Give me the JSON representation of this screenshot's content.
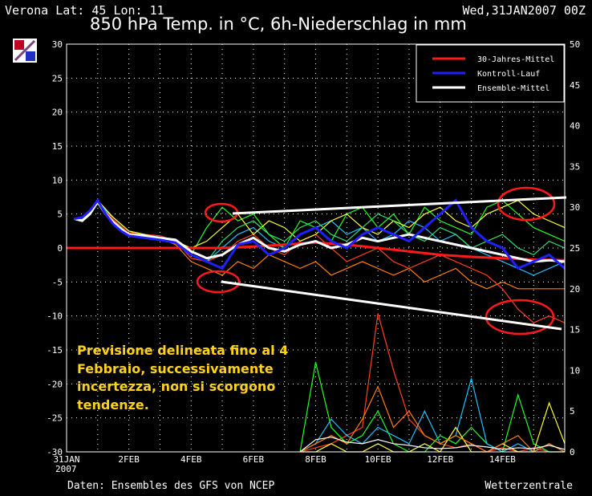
{
  "header": {
    "station": "Verona   Lat: 45 Lon: 11",
    "run": "Wed,31JAN2007 00Z",
    "title": "850 hPa Temp. in °C, 6h-Niederschlag in mm"
  },
  "footer": {
    "source": "Daten: Ensembles des GFS von NCEP",
    "brand": "Wetterzentrale"
  },
  "annotation": {
    "lines": [
      "Previsione delineata fino al 4",
      "Febbraio, successivamente",
      "incertezza, non si scorgono",
      "tendenze."
    ]
  },
  "colors": {
    "climate": "#ff1a1a",
    "control": "#2020ff",
    "mean": "#ffffff",
    "annotation": "#ffd21a",
    "members": [
      "#20ff20",
      "#ff8000",
      "#ff4020",
      "#20c0ff",
      "#ffff30",
      "#30e070",
      "#ff6060",
      "#e0a000"
    ]
  },
  "chart_data": {
    "type": "line",
    "ylim": [
      -30,
      30
    ],
    "y2lim": [
      0,
      50
    ],
    "yticks": [
      "30",
      "25",
      "20",
      "15",
      "10",
      "5",
      "0",
      "-5",
      "-10",
      "-15",
      "-20",
      "-25",
      "-30"
    ],
    "y2ticks": [
      "50",
      "45",
      "40",
      "35",
      "30",
      "25",
      "20",
      "15",
      "10",
      "5",
      "0"
    ],
    "xticks": [
      "31JAN",
      "2FEB",
      "4FEB",
      "6FEB",
      "8FEB",
      "10FEB",
      "12FEB",
      "14FEB"
    ],
    "xtick_sub": "2007",
    "xlim": [
      0,
      16
    ],
    "grid": true,
    "legend": {
      "position": "top-right",
      "entries": [
        "30-Jahres-Mittel",
        "Kontroll-Lauf",
        "Ensemble-Mittel"
      ]
    },
    "series": [
      {
        "name": "30-Jahres-Mittel",
        "color": "#ff1a1a",
        "x": [
          0,
          1,
          2,
          3,
          4,
          5,
          6,
          7,
          8,
          9,
          10,
          11,
          12,
          13,
          14,
          15,
          16
        ],
        "y": [
          0,
          0,
          0,
          0,
          0,
          0,
          0.2,
          0.5,
          0.8,
          0.5,
          0,
          -0.5,
          -1,
          -1.3,
          -1.5,
          -1.7,
          -1.8
        ]
      },
      {
        "name": "Kontroll-Lauf",
        "color": "#2020ff",
        "x": [
          0.25,
          0.5,
          0.75,
          1,
          1.25,
          1.5,
          1.75,
          2,
          2.5,
          3,
          3.5,
          4,
          4.5,
          5,
          5.5,
          6,
          6.5,
          7,
          7.5,
          8,
          8.5,
          9,
          9.5,
          10,
          10.5,
          11,
          11.5,
          12,
          12.5,
          13,
          13.5,
          14,
          14.5,
          15,
          15.5,
          16
        ],
        "y": [
          4.3,
          4.5,
          5.5,
          7,
          5,
          3.5,
          2.5,
          1.8,
          1.5,
          1.2,
          0.8,
          -1,
          -2,
          -3,
          0.5,
          1,
          -1,
          0,
          2,
          3,
          1,
          0,
          2,
          3,
          2,
          1,
          3,
          5,
          7,
          3,
          1,
          0,
          -3,
          -2,
          -1,
          -3
        ]
      },
      {
        "name": "Ensemble-Mittel",
        "color": "#ffffff",
        "x": [
          0.25,
          0.5,
          0.75,
          1,
          1.25,
          1.5,
          1.75,
          2,
          2.5,
          3,
          3.5,
          4,
          4.5,
          5,
          5.5,
          6,
          6.5,
          7,
          7.5,
          8,
          8.5,
          9,
          9.5,
          10,
          10.5,
          11,
          11.5,
          12,
          12.5,
          13,
          13.5,
          14,
          14.5,
          15,
          15.5,
          16
        ],
        "y": [
          4.3,
          4,
          5,
          6.8,
          5,
          3.8,
          2.8,
          2,
          1.8,
          1.5,
          1.2,
          -0.5,
          -1.5,
          -1,
          0.5,
          1.5,
          0,
          -0.5,
          0.5,
          1,
          0,
          0.5,
          1.5,
          1,
          1.5,
          2,
          1.5,
          1,
          0.5,
          0,
          -0.5,
          -1,
          -1.5,
          -2,
          -1.8,
          -2
        ]
      },
      {
        "name": "",
        "color": "#20ff20",
        "x": [
          0.25,
          0.5,
          1,
          1.5,
          2,
          2.5,
          3,
          3.5,
          4,
          4.5,
          5,
          5.5,
          6,
          6.5,
          7,
          7.5,
          8,
          8.5,
          9,
          9.5,
          10,
          10.5,
          11,
          11.5,
          12,
          12.5,
          13,
          13.5,
          14,
          14.5,
          15,
          15.5,
          16
        ],
        "y": [
          4.3,
          4,
          7,
          4,
          2,
          2,
          1.5,
          1,
          -1,
          3,
          6,
          4,
          5,
          2,
          0,
          4,
          3,
          1,
          5,
          6,
          3,
          5,
          2,
          6,
          4,
          3,
          2,
          6,
          7,
          5,
          3,
          2,
          1
        ]
      },
      {
        "name": "",
        "color": "#ff8000",
        "x": [
          0.25,
          0.5,
          1,
          1.5,
          2,
          2.5,
          3,
          3.5,
          4,
          4.5,
          5,
          5.5,
          6,
          6.5,
          7,
          7.5,
          8,
          8.5,
          9,
          9.5,
          10,
          10.5,
          11,
          11.5,
          12,
          12.5,
          13,
          13.5,
          14,
          14.5,
          15,
          15.5,
          16
        ],
        "y": [
          4.3,
          4,
          6.5,
          4.5,
          2.5,
          1.5,
          1.5,
          0.5,
          -2,
          -3,
          -4,
          -2,
          -3,
          -1,
          -2,
          -3,
          -2,
          -4,
          -3,
          -2,
          -3,
          -4,
          -3,
          -5,
          -4,
          -3,
          -5,
          -6,
          -5,
          -6,
          -6,
          -6,
          -6
        ]
      },
      {
        "name": "",
        "color": "#ff4020",
        "x": [
          0.25,
          0.5,
          1,
          1.5,
          2,
          2.5,
          3,
          3.5,
          4,
          4.5,
          5,
          5.5,
          6,
          6.5,
          7,
          7.5,
          8,
          8.5,
          9,
          9.5,
          10,
          10.5,
          11,
          11.5,
          12,
          12.5,
          13,
          13.5,
          14,
          14.5,
          15,
          15.5,
          16
        ],
        "y": [
          4.3,
          4,
          6.8,
          4.2,
          2.2,
          2,
          1.8,
          1,
          -1.5,
          -2,
          -1,
          1,
          2,
          0,
          -1,
          1,
          2,
          0,
          -2,
          -1,
          0,
          -2,
          -3,
          -2,
          -1,
          -2,
          -3,
          -4,
          -6,
          -9,
          -11,
          -10,
          -11
        ]
      },
      {
        "name": "",
        "color": "#20c0ff",
        "x": [
          0.25,
          0.5,
          1,
          1.5,
          2,
          2.5,
          3,
          3.5,
          4,
          4.5,
          5,
          5.5,
          6,
          6.5,
          7,
          7.5,
          8,
          8.5,
          9,
          9.5,
          10,
          10.5,
          11,
          11.5,
          12,
          12.5,
          13,
          13.5,
          14,
          14.5,
          15,
          15.5,
          16
        ],
        "y": [
          4.3,
          4.2,
          6.7,
          4.5,
          2.5,
          2,
          1.5,
          1,
          -1,
          -2,
          0,
          2,
          3,
          1,
          0,
          2,
          3,
          4,
          2,
          3,
          1,
          2,
          4,
          3,
          1,
          2,
          0,
          -1,
          -2,
          -3,
          -4,
          -3,
          -2
        ]
      },
      {
        "name": "",
        "color": "#ffff30",
        "x": [
          0.25,
          0.5,
          1,
          1.5,
          2,
          2.5,
          3,
          3.5,
          4,
          4.5,
          5,
          5.5,
          6,
          6.5,
          7,
          7.5,
          8,
          8.5,
          9,
          9.5,
          10,
          10.5,
          11,
          11.5,
          12,
          12.5,
          13,
          13.5,
          14,
          14.5,
          15,
          15.5,
          16
        ],
        "y": [
          4.3,
          4,
          7,
          4.5,
          2.5,
          2,
          1.5,
          1,
          0,
          1,
          3,
          5,
          2,
          4,
          3,
          1,
          2,
          4,
          5,
          3,
          2,
          4,
          3,
          5,
          6,
          4,
          3,
          5,
          6,
          7,
          5,
          4,
          3
        ]
      },
      {
        "name": "",
        "color": "#30e070",
        "x": [
          0.25,
          0.5,
          1,
          1.5,
          2,
          2.5,
          3,
          3.5,
          4,
          4.5,
          5,
          5.5,
          6,
          6.5,
          7,
          7.5,
          8,
          8.5,
          9,
          9.5,
          10,
          10.5,
          11,
          11.5,
          12,
          12.5,
          13,
          13.5,
          14,
          14.5,
          15,
          15.5,
          16
        ],
        "y": [
          4.3,
          4.2,
          6.5,
          4,
          2,
          1.8,
          1.5,
          0.8,
          -1,
          -2,
          1,
          3,
          4,
          2,
          1,
          3,
          4,
          2,
          1,
          3,
          5,
          4,
          2,
          1,
          3,
          2,
          0,
          1,
          2,
          0,
          -1,
          1,
          0
        ]
      }
    ],
    "precipitation_series": [
      {
        "name": "",
        "color": "#ff4020",
        "x": [
          7.5,
          8,
          8.5,
          9,
          9.5,
          10,
          10.5,
          11,
          11.5,
          12,
          12.5,
          13,
          13.5,
          14,
          14.5,
          15,
          15.5,
          16
        ],
        "y": [
          0,
          0.5,
          1,
          2,
          3,
          17,
          10,
          4,
          2,
          1,
          0.5,
          1,
          0,
          0.5,
          0,
          0.5,
          0,
          0
        ]
      },
      {
        "name": "",
        "color": "#20ff20",
        "x": [
          7.5,
          8,
          8.5,
          9,
          9.5,
          10,
          10.5,
          11,
          11.5,
          12,
          12.5,
          13,
          13.5,
          14,
          14.5,
          15,
          15.5,
          16
        ],
        "y": [
          0,
          11,
          3,
          1,
          2,
          5,
          1,
          0,
          0,
          2,
          1,
          3,
          1,
          0,
          7,
          1,
          0,
          0
        ]
      },
      {
        "name": "",
        "color": "#20c0ff",
        "x": [
          7.5,
          8,
          8.5,
          9,
          9.5,
          10,
          10.5,
          11,
          11.5,
          12,
          12.5,
          13,
          13.5,
          14,
          14.5,
          15,
          15.5,
          16
        ],
        "y": [
          0,
          1,
          4,
          2,
          1,
          3,
          2,
          1,
          5,
          1,
          2,
          9,
          1,
          0,
          1,
          0,
          1,
          0
        ]
      },
      {
        "name": "",
        "color": "#ffff30",
        "x": [
          7.5,
          8,
          8.5,
          9,
          9.5,
          10,
          10.5,
          11,
          11.5,
          12,
          12.5,
          13,
          13.5,
          14,
          14.5,
          15,
          15.5,
          16
        ],
        "y": [
          0,
          0,
          1,
          0,
          0,
          1,
          0,
          0,
          1,
          0,
          3,
          0,
          0,
          1,
          0,
          0,
          6,
          1
        ]
      },
      {
        "name": "",
        "color": "#ff8000",
        "x": [
          7.5,
          8,
          8.5,
          9,
          9.5,
          10,
          10.5,
          11,
          11.5,
          12,
          12.5,
          13,
          13.5,
          14,
          14.5,
          15,
          15.5,
          16
        ],
        "y": [
          0,
          1,
          2,
          1,
          4,
          8,
          3,
          5,
          2,
          1,
          2,
          1,
          0,
          1,
          2,
          0,
          1,
          0
        ]
      },
      {
        "name": "",
        "color": "#ffffff",
        "x": [
          7.5,
          8,
          8.5,
          9,
          9.5,
          10,
          10.5,
          11,
          11.5,
          12,
          12.5,
          13,
          13.5,
          14,
          14.5,
          15,
          15.5,
          16
        ],
        "y": [
          0,
          1.5,
          1.8,
          1.2,
          1,
          1.5,
          1,
          0.8,
          0.5,
          0.4,
          0.5,
          0.8,
          0.6,
          0.3,
          0.5,
          0.4,
          0.8,
          0.3
        ]
      }
    ]
  }
}
